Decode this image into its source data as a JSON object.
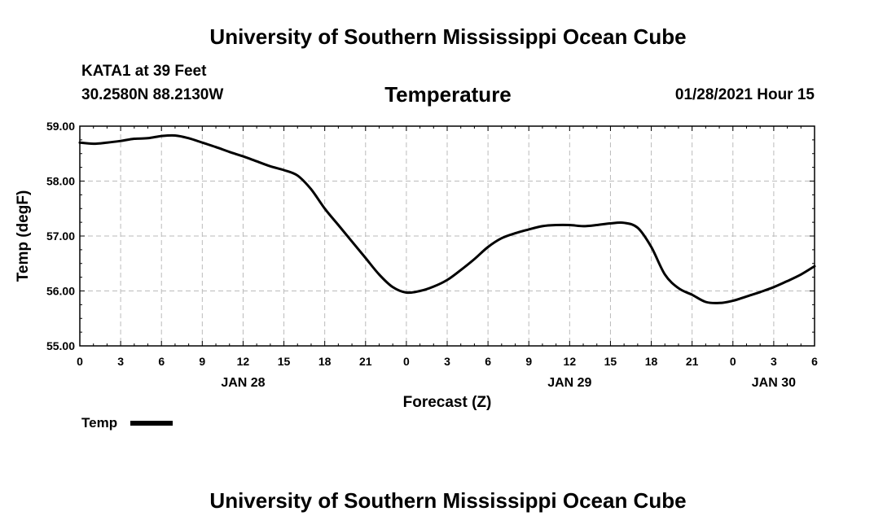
{
  "header": {
    "title": "University of Southern Mississippi Ocean Cube",
    "station": "KATA1 at 39 Feet",
    "coords": "30.2580N 88.2130W",
    "parameter": "Temperature",
    "run_time": "01/28/2021 Hour 15"
  },
  "footer": {
    "title": "University of Southern Mississippi Ocean Cube"
  },
  "legend": {
    "label": "Temp",
    "color": "#000000"
  },
  "chart_data": {
    "type": "line",
    "title": "Temperature",
    "xlabel": "Forecast (Z)",
    "ylabel": "Temp (degF)",
    "xlim": [
      0,
      54
    ],
    "ylim": [
      55.0,
      59.0
    ],
    "grid": true,
    "legend_position": "bottom-left",
    "x_tick_values": [
      0,
      3,
      6,
      9,
      12,
      15,
      18,
      21,
      24,
      27,
      30,
      33,
      36,
      39,
      42,
      45,
      48,
      51,
      54
    ],
    "x_tick_labels": [
      "0",
      "3",
      "6",
      "9",
      "12",
      "15",
      "18",
      "21",
      "0",
      "3",
      "6",
      "9",
      "12",
      "15",
      "18",
      "21",
      "0",
      "3",
      "6"
    ],
    "y_ticks": [
      55.0,
      56.0,
      57.0,
      58.0,
      59.0
    ],
    "y_tick_labels": [
      "55.00",
      "56.00",
      "57.00",
      "58.00",
      "59.00"
    ],
    "date_labels": [
      {
        "x": 12,
        "label": "JAN 28"
      },
      {
        "x": 36,
        "label": "JAN 29"
      },
      {
        "x": 51,
        "label": "JAN 30"
      }
    ],
    "series": [
      {
        "name": "Temp",
        "color": "#000000",
        "x": [
          0,
          1,
          2,
          3,
          4,
          5,
          6,
          7,
          8,
          9,
          10,
          11,
          12,
          13,
          14,
          15,
          16,
          17,
          18,
          19,
          20,
          21,
          22,
          23,
          24,
          25,
          26,
          27,
          28,
          29,
          30,
          31,
          32,
          33,
          34,
          35,
          36,
          37,
          38,
          39,
          40,
          41,
          42,
          43,
          44,
          45,
          46,
          47,
          48,
          49,
          50,
          51,
          52,
          53,
          54
        ],
        "values": [
          58.7,
          58.68,
          58.7,
          58.73,
          58.77,
          58.78,
          58.82,
          58.83,
          58.78,
          58.7,
          58.62,
          58.53,
          58.45,
          58.36,
          58.27,
          58.2,
          58.1,
          57.85,
          57.5,
          57.2,
          56.9,
          56.6,
          56.3,
          56.07,
          55.97,
          56.0,
          56.08,
          56.2,
          56.38,
          56.58,
          56.8,
          56.96,
          57.05,
          57.12,
          57.18,
          57.2,
          57.2,
          57.18,
          57.2,
          57.23,
          57.24,
          57.15,
          56.8,
          56.3,
          56.05,
          55.93,
          55.8,
          55.78,
          55.82,
          55.9,
          55.98,
          56.07,
          56.18,
          56.3,
          56.45
        ]
      }
    ]
  }
}
